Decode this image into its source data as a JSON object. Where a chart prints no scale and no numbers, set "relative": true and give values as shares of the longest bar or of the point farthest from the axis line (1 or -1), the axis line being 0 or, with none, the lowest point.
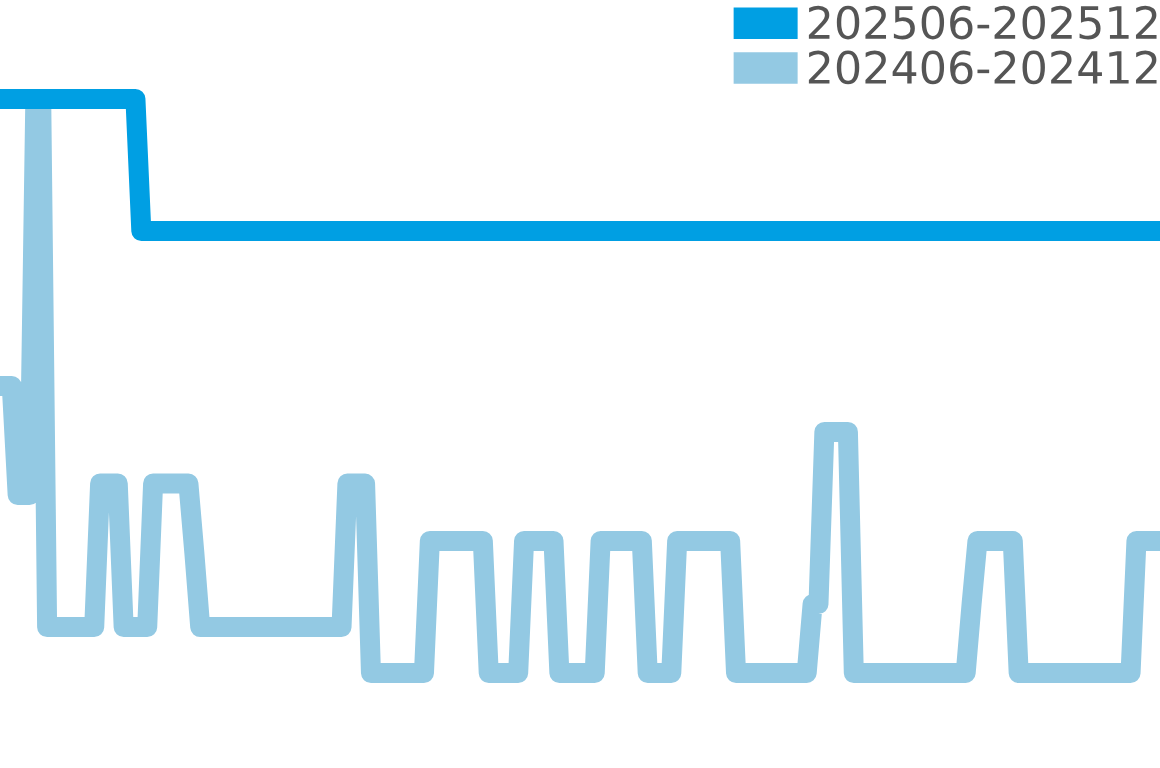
{
  "chart_data": {
    "type": "line",
    "relative": true,
    "legend": "top right",
    "line_style": "solid",
    "categories": [
      null,
      null,
      null,
      null,
      null,
      null,
      null,
      null,
      null,
      null,
      null,
      null,
      null,
      null,
      null,
      null,
      null,
      null,
      null,
      null,
      null,
      null,
      null,
      null,
      null,
      null,
      null,
      null,
      null,
      null,
      null,
      null,
      null,
      null,
      null,
      null,
      null,
      null,
      null,
      null,
      null,
      null,
      null,
      null,
      null,
      null,
      null,
      null,
      null,
      null,
      null,
      null,
      null,
      null,
      null,
      null,
      null,
      null,
      null,
      null,
      null,
      null,
      null,
      null,
      null,
      null,
      null,
      null,
      null,
      null,
      null,
      null,
      null,
      null,
      null,
      null,
      null,
      null,
      null,
      null,
      null,
      null,
      null,
      null,
      null,
      null,
      null,
      null,
      null,
      null,
      null,
      null,
      null,
      null,
      null,
      null,
      null,
      null,
      null,
      null,
      null,
      null,
      null,
      null,
      null,
      null,
      null,
      null,
      null,
      null,
      null,
      null,
      null,
      null,
      null,
      null,
      null,
      null,
      null,
      null,
      null,
      null,
      null,
      null,
      null,
      null,
      null,
      null,
      null,
      null,
      null,
      null,
      null,
      null,
      null,
      null,
      null,
      null,
      null,
      null,
      null,
      null,
      null,
      null,
      null,
      null,
      null,
      null,
      null,
      null,
      null,
      null,
      null,
      null,
      null,
      null,
      null,
      null,
      null,
      null,
      null,
      null,
      null,
      null,
      null,
      null,
      null,
      null,
      null,
      null,
      null,
      null,
      null,
      null,
      null,
      null,
      null,
      null,
      null,
      null,
      null,
      null,
      null,
      null,
      null,
      null,
      null,
      null,
      null,
      null,
      null,
      null,
      null,
      null,
      null,
      null,
      null,
      null
    ],
    "series": [
      {
        "name": "202506-202512",
        "color": "#009fe3",
        "values": [
          1,
          1,
          1,
          1,
          1,
          1,
          1,
          1,
          1,
          1,
          1,
          1,
          1,
          1,
          1,
          1,
          1,
          1,
          1,
          1,
          1,
          1,
          1,
          1,
          0.77,
          0.77,
          0.77,
          0.77,
          0.77,
          0.77,
          0.77,
          0.77,
          0.77,
          0.77,
          0.77,
          0.77,
          0.77,
          0.77,
          0.77,
          0.77,
          0.77,
          0.77,
          0.77,
          0.77,
          0.77,
          0.77,
          0.77,
          0.77,
          0.77,
          0.77,
          0.77,
          0.77,
          0.77,
          0.77,
          0.77,
          0.77,
          0.77,
          0.77,
          0.77,
          0.77,
          0.77,
          0.77,
          0.77,
          0.77,
          0.77,
          0.77,
          0.77,
          0.77,
          0.77,
          0.77,
          0.77,
          0.77,
          0.77,
          0.77,
          0.77,
          0.77,
          0.77,
          0.77,
          0.77,
          0.77,
          0.77,
          0.77,
          0.77,
          0.77,
          0.77,
          0.77,
          0.77,
          0.77,
          0.77,
          0.77,
          0.77,
          0.77,
          0.77,
          0.77,
          0.77,
          0.77,
          0.77,
          0.77,
          0.77,
          0.77,
          0.77,
          0.77,
          0.77,
          0.77,
          0.77,
          0.77,
          0.77,
          0.77,
          0.77,
          0.77,
          0.77,
          0.77,
          0.77,
          0.77,
          0.77,
          0.77,
          0.77,
          0.77,
          0.77,
          0.77,
          0.77,
          0.77,
          0.77,
          0.77,
          0.77,
          0.77,
          0.77,
          0.77,
          0.77,
          0.77,
          0.77,
          0.77,
          0.77,
          0.77,
          0.77,
          0.77,
          0.77,
          0.77,
          0.77,
          0.77,
          0.77,
          0.77,
          0.77,
          0.77,
          0.77,
          0.77,
          0.77,
          0.77,
          0.77,
          0.77,
          0.77,
          0.77,
          0.77,
          0.77,
          0.77,
          0.77,
          0.77,
          0.77,
          0.77,
          0.77,
          0.77,
          0.77,
          0.77,
          0.77,
          0.77,
          0.77,
          0.77,
          0.77,
          0.77,
          0.77,
          0.77,
          0.77,
          0.77,
          0.77,
          0.77,
          0.77,
          0.77,
          0.77,
          0.77,
          0.77,
          0.77,
          0.77,
          0.77,
          0.77,
          0.77,
          0.77,
          0.77,
          0.77,
          0.77,
          0.77,
          0.77,
          0.77,
          0.77,
          0.77,
          0.77,
          0.77,
          0.77,
          0.77
        ]
      },
      {
        "name": "202406-202412",
        "color": "#93c9e3",
        "values": [
          0.5,
          0.5,
          0.5,
          0.31,
          0.31,
          0.31,
          1,
          1,
          0.08,
          0.08,
          0.08,
          0.08,
          0.08,
          0.08,
          0.08,
          0.08,
          0.08,
          0.33,
          0.33,
          0.33,
          0.33,
          0.08,
          0.08,
          0.08,
          0.08,
          0.08,
          0.33,
          0.33,
          0.33,
          0.33,
          0.33,
          0.33,
          0.33,
          0.21,
          0.08,
          0.08,
          0.08,
          0.08,
          0.08,
          0.08,
          0.08,
          0.08,
          0.08,
          0.08,
          0.08,
          0.08,
          0.08,
          0.08,
          0.08,
          0.08,
          0.08,
          0.08,
          0.08,
          0.08,
          0.08,
          0.08,
          0.08,
          0.08,
          0.08,
          0.33,
          0.33,
          0.33,
          0.33,
          0,
          0,
          0,
          0,
          0,
          0,
          0,
          0,
          0,
          0,
          0.23,
          0.23,
          0.23,
          0.23,
          0.23,
          0.23,
          0.23,
          0.23,
          0.23,
          0.23,
          0,
          0,
          0,
          0,
          0,
          0,
          0.23,
          0.23,
          0.23,
          0.23,
          0.23,
          0.23,
          0,
          0,
          0,
          0,
          0,
          0,
          0,
          0.23,
          0.23,
          0.23,
          0.23,
          0.23,
          0.23,
          0.23,
          0.23,
          0,
          0,
          0,
          0,
          0,
          0.23,
          0.23,
          0.23,
          0.23,
          0.23,
          0.23,
          0.23,
          0.23,
          0.23,
          0.23,
          0,
          0,
          0,
          0,
          0,
          0,
          0,
          0,
          0,
          0,
          0,
          0,
          0,
          0.12,
          0.12,
          0.42,
          0.42,
          0.42,
          0.42,
          0.42,
          0,
          0,
          0,
          0,
          0,
          0,
          0,
          0,
          0,
          0,
          0,
          0,
          0,
          0,
          0,
          0,
          0,
          0,
          0,
          0,
          0.12,
          0.23,
          0.23,
          0.23,
          0.23,
          0.23,
          0.23,
          0.23,
          0,
          0,
          0,
          0,
          0,
          0,
          0,
          0,
          0,
          0,
          0,
          0,
          0,
          0,
          0,
          0,
          0,
          0,
          0,
          0,
          0.23,
          0.23,
          0.23,
          0.23,
          0.23
        ]
      }
    ]
  }
}
